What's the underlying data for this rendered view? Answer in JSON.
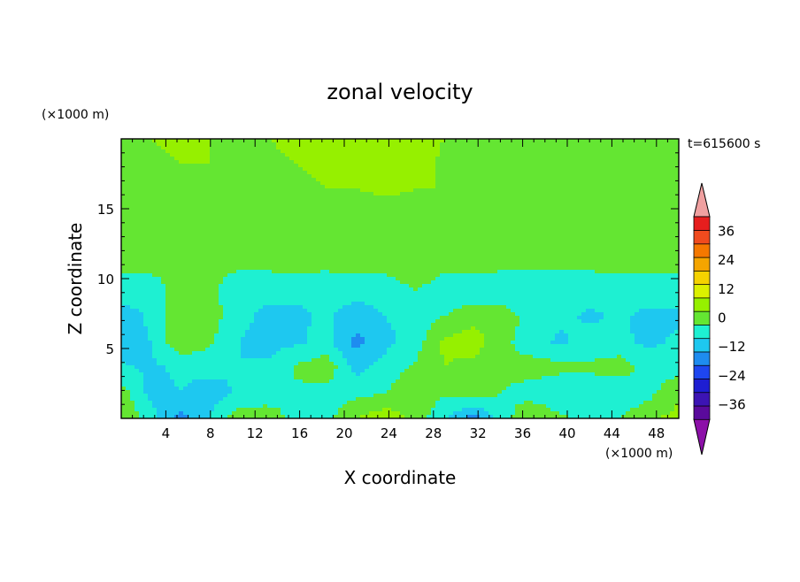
{
  "chart_data": {
    "type": "heatmap",
    "title": "zonal velocity",
    "xlabel": "X coordinate",
    "ylabel": "Z coordinate",
    "x_unit": "(×1000 m)",
    "y_unit": "(×1000 m)",
    "time_label": "t=615600 s",
    "xlim": [
      0,
      50
    ],
    "ylim": [
      0,
      20
    ],
    "x_ticks": [
      4,
      8,
      12,
      16,
      20,
      24,
      28,
      32,
      36,
      40,
      44,
      48
    ],
    "y_ticks": [
      5,
      10,
      15
    ],
    "colorbar": {
      "levels": [
        -42,
        -36,
        -30,
        -24,
        -18,
        -12,
        -6,
        0,
        6,
        12,
        18,
        24,
        30,
        36,
        42
      ],
      "labels": [
        -36,
        -24,
        -12,
        0,
        12,
        24,
        36
      ],
      "colors": [
        "#5a0a9c",
        "#3c14b4",
        "#1e1ed2",
        "#1e46f0",
        "#1e8cf0",
        "#1ec8f0",
        "#1ef0d2",
        "#64e632",
        "#96f000",
        "#dcf000",
        "#f5d200",
        "#f5a500",
        "#f57800",
        "#f04b1e",
        "#e61e1e"
      ],
      "under_color": "#8c10a8",
      "over_color": "#f0a0a0"
    },
    "z_grid": [
      [
        5,
        6,
        7,
        6,
        5,
        6,
        7,
        9,
        11,
        12,
        9,
        6,
        5,
        4,
        4,
        5,
        5,
        3,
        4,
        4
      ],
      [
        4,
        5,
        6,
        6,
        5,
        5,
        6,
        7,
        8,
        9,
        8,
        5,
        4,
        4,
        4,
        4,
        4,
        3,
        3,
        4
      ],
      [
        3,
        4,
        3,
        4,
        4,
        5,
        5,
        6,
        6,
        7,
        6,
        6,
        5,
        6,
        5,
        4,
        4,
        4,
        4,
        3
      ],
      [
        2,
        1,
        1,
        1,
        2,
        2,
        2,
        2,
        2,
        3,
        3,
        2,
        2,
        1,
        2,
        2,
        2,
        1,
        1,
        2
      ],
      [
        2,
        1,
        1,
        1,
        2,
        1,
        1,
        1,
        1,
        2,
        2,
        2,
        1,
        2,
        2,
        1,
        2,
        1,
        2,
        2
      ],
      [
        1,
        2,
        1,
        1,
        1,
        1,
        2,
        1,
        2,
        2,
        4,
        1,
        2,
        1,
        1,
        1,
        1,
        2,
        1,
        1
      ],
      [
        -3,
        -4,
        4,
        2,
        -4,
        -4,
        -5,
        -4,
        -4,
        -4,
        0,
        -3,
        -4,
        -4,
        -5,
        -4,
        -4,
        -4,
        -2,
        -3
      ],
      [
        -9,
        -5,
        6,
        3,
        -4,
        -8,
        -7,
        -5,
        -9,
        -6,
        -3,
        0,
        4,
        3,
        -2,
        -5,
        -7,
        -5,
        -8,
        -7
      ],
      [
        -10,
        -6,
        5,
        1,
        -6,
        -8,
        -7,
        -4,
        -14,
        -8,
        -3,
        7,
        9,
        2,
        -4,
        -7,
        -3,
        -5,
        -7,
        -5
      ],
      [
        -5,
        -7,
        -5,
        -4,
        -6,
        -5,
        1,
        4,
        -8,
        -3,
        1,
        6,
        4,
        1,
        3,
        2,
        1,
        4,
        -3,
        -3
      ],
      [
        3,
        -8,
        -6,
        -9,
        -5,
        -3,
        -1,
        -3,
        -2,
        0,
        4,
        1,
        4,
        0,
        -3,
        -6,
        -4,
        -6,
        -2,
        6
      ],
      [
        6,
        -3,
        -14,
        -6,
        4,
        3,
        -2,
        -2,
        6,
        10,
        4,
        -5,
        -15,
        -3,
        6,
        1,
        -1,
        0,
        6,
        7
      ]
    ]
  }
}
